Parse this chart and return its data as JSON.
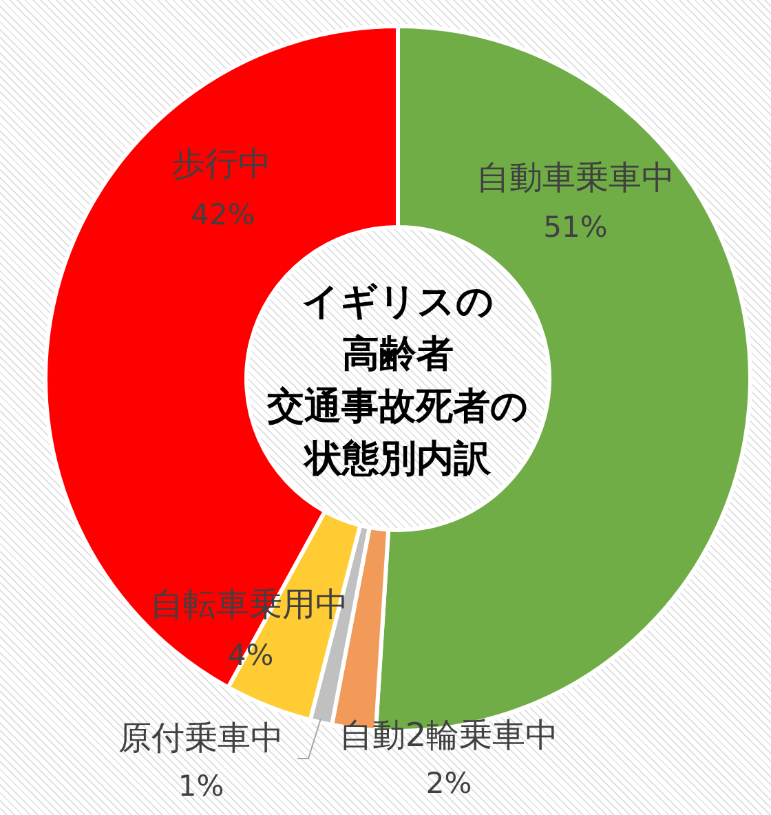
{
  "chart_data": {
    "type": "donut",
    "title": "イギリスの高齢者交通事故死者の状態別内訳",
    "categories": [
      "自動車乗車中",
      "自動2輪乗車中",
      "原付乗車中",
      "自転車乗用中",
      "歩行中"
    ],
    "values": [
      51,
      2,
      1,
      4,
      42
    ],
    "colors": [
      "#70ad47",
      "#f19a5a",
      "#c0c0c0",
      "#ffcc33",
      "#ff0000"
    ],
    "value_labels": [
      "51%",
      "2%",
      "1%",
      "4%",
      "42%"
    ]
  }
}
